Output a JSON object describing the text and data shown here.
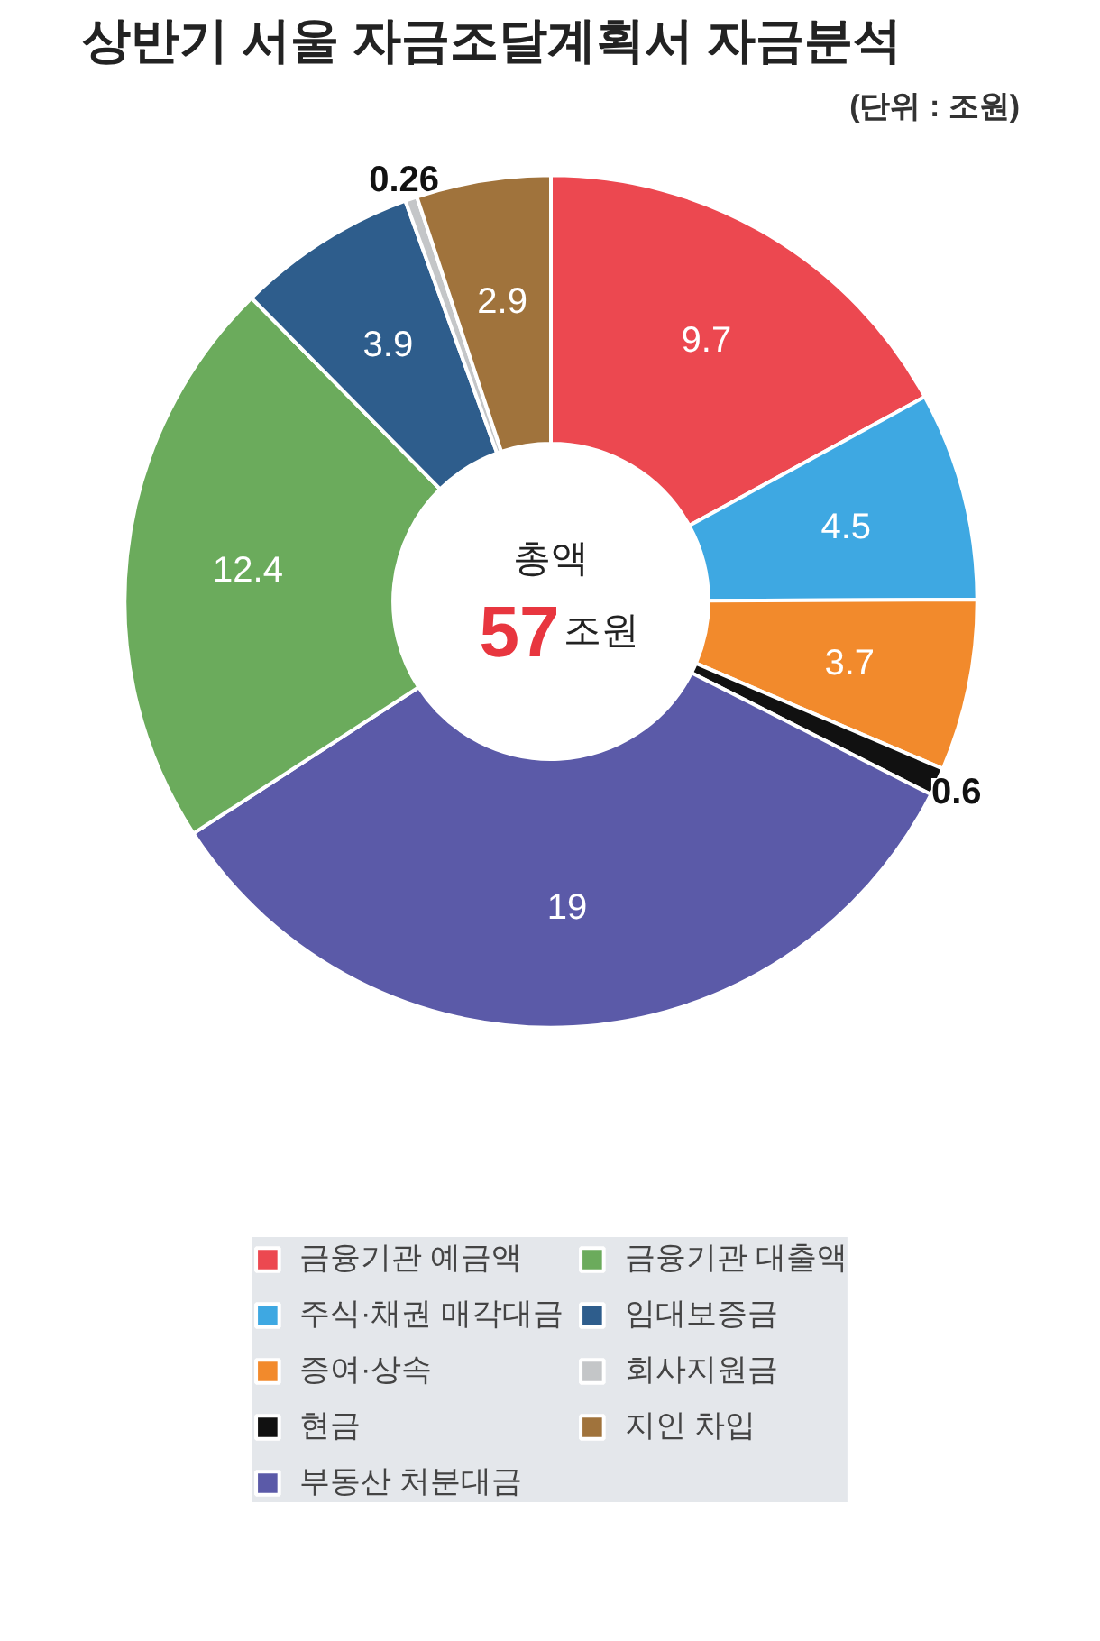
{
  "chart_data": {
    "type": "donut",
    "title": "상반기 서울 자금조달계획서 자금분석",
    "subtitle": "(단위 : 조원)",
    "categories": [
      "금융기관 예금액",
      "주식·채권 매각대금",
      "증여·상속",
      "현금",
      "부동산 처분대금",
      "금융기관 대출액",
      "임대보증금",
      "회사지원금",
      "지인 차입"
    ],
    "values": [
      9.7,
      4.5,
      3.7,
      0.6,
      19,
      12.4,
      3.9,
      0.26,
      2.9
    ],
    "colors": [
      "#ec4850",
      "#3ea8e2",
      "#f28a2c",
      "#111111",
      "#5b5aa8",
      "#6bab5c",
      "#2e5d8c",
      "#c4c6c8",
      "#a0733c"
    ],
    "annotations": [
      "총액",
      "57",
      "조원"
    ],
    "data_labels": true,
    "legend": "bottom"
  }
}
